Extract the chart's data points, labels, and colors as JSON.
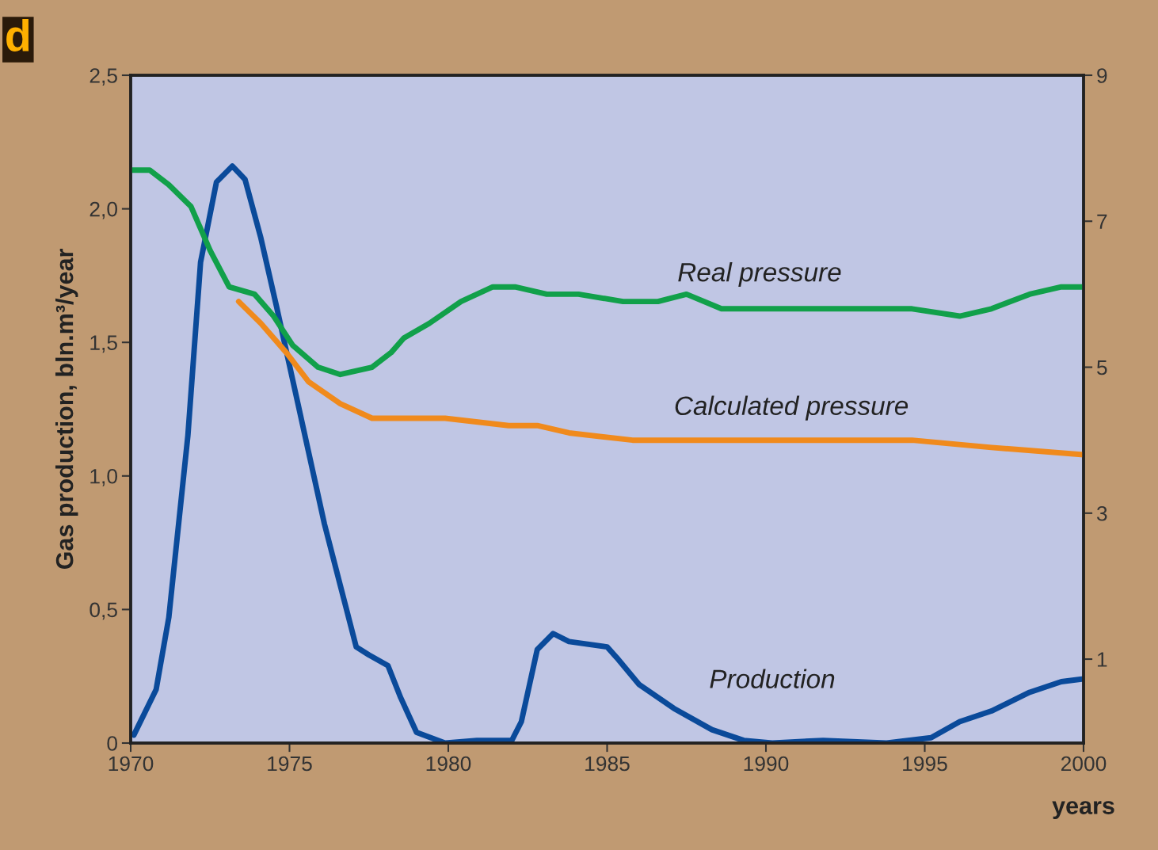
{
  "chart_data": {
    "type": "line",
    "xlabel": "years",
    "ylabel": "Gas production, bln.m³/year",
    "annotations": [
      "d"
    ],
    "xlim": [
      1970,
      2000
    ],
    "xticks": [
      1970,
      1975,
      1980,
      1985,
      1990,
      1995,
      2000
    ],
    "ylim": [
      0,
      2.5
    ],
    "yticks": [
      {
        "value": 0,
        "label": "0"
      },
      {
        "value": 0.5,
        "label": "0,5"
      },
      {
        "value": 1.0,
        "label": "1,0"
      },
      {
        "value": 1.5,
        "label": "1,5"
      },
      {
        "value": 2.0,
        "label": "2,0"
      },
      {
        "value": 2.5,
        "label": "2,5"
      }
    ],
    "y2lim": [
      -0.15,
      9
    ],
    "y2ticks": [
      1,
      3,
      5,
      7,
      9
    ],
    "grid": false,
    "legend": false,
    "marker": "none",
    "line_style": "solid",
    "series": [
      {
        "name": "Real pressure",
        "color": "#11a04a",
        "axis": "y2",
        "x": [
          1970,
          1970.6,
          1971.2,
          1971.9,
          1972.5,
          1973.1,
          1973.9,
          1974.5,
          1975.1,
          1975.9,
          1976.6,
          1977.6,
          1978.2,
          1978.6,
          1979.4,
          1980.4,
          1981.4,
          1982.1,
          1983.1,
          1984.1,
          1985.5,
          1986.6,
          1987.5,
          1988.6,
          1989.8,
          1992.0,
          1993.6,
          1994.6,
          1996.1,
          1997.1,
          1998.3,
          1999.3,
          2000
        ],
        "values": [
          7.7,
          7.7,
          7.5,
          7.2,
          6.6,
          6.1,
          6.0,
          5.7,
          5.3,
          5.0,
          4.9,
          5.0,
          5.2,
          5.4,
          5.6,
          5.9,
          6.1,
          6.1,
          6.0,
          6.0,
          5.9,
          5.9,
          6.0,
          5.8,
          5.8,
          5.8,
          5.8,
          5.8,
          5.7,
          5.8,
          6.0,
          6.1,
          6.1
        ]
      },
      {
        "name": "Calculated pressure",
        "color": "#f08a1c",
        "axis": "y2",
        "x": [
          1973.4,
          1974.1,
          1974.9,
          1975.6,
          1976.6,
          1977.6,
          1978.6,
          1979.9,
          1981.9,
          1982.8,
          1983.8,
          1985.8,
          1988.3,
          1990.8,
          1993.3,
          1994.6,
          1997.1,
          2000
        ],
        "values": [
          5.9,
          5.6,
          5.2,
          4.8,
          4.5,
          4.3,
          4.3,
          4.3,
          4.2,
          4.2,
          4.1,
          4.0,
          4.0,
          4.0,
          4.0,
          4.0,
          3.9,
          3.8
        ]
      },
      {
        "name": "Production",
        "color": "#0a4a9a",
        "axis": "y",
        "x": [
          1970.1,
          1970.8,
          1971.2,
          1971.8,
          1972.2,
          1972.7,
          1973.2,
          1973.6,
          1974.1,
          1974.6,
          1975.1,
          1975.6,
          1976.1,
          1976.6,
          1977.1,
          1977.5,
          1978.1,
          1978.5,
          1979.0,
          1979.9,
          1980.9,
          1982.0,
          1982.3,
          1982.8,
          1983.3,
          1983.8,
          1985.0,
          1985.3,
          1986.0,
          1987.1,
          1988.3,
          1989.3,
          1990.2,
          1991.8,
          1993.8,
          1995.2,
          1996.1,
          1997.1,
          1998.3,
          1999.3,
          2000
        ],
        "values": [
          0.03,
          0.2,
          0.47,
          1.15,
          1.8,
          2.1,
          2.16,
          2.11,
          1.89,
          1.63,
          1.36,
          1.09,
          0.82,
          0.59,
          0.36,
          0.33,
          0.29,
          0.17,
          0.04,
          0.0,
          0.01,
          0.01,
          0.08,
          0.35,
          0.41,
          0.38,
          0.36,
          0.32,
          0.22,
          0.13,
          0.05,
          0.01,
          0.0,
          0.01,
          0.0,
          0.02,
          0.08,
          0.12,
          0.19,
          0.23,
          0.24
        ]
      }
    ]
  }
}
